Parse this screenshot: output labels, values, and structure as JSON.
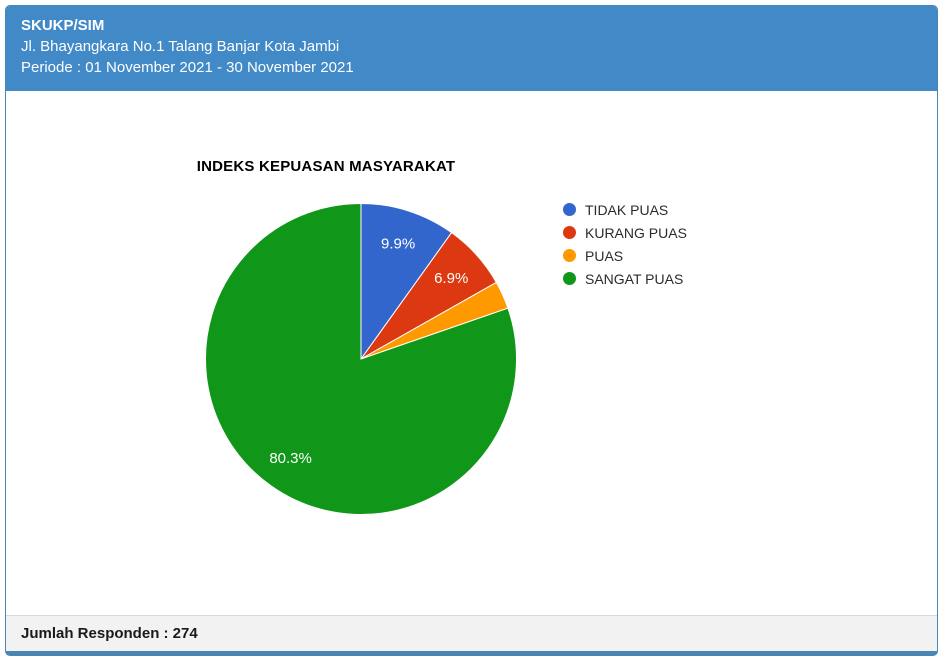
{
  "header": {
    "title": "SKUKP/SIM",
    "address": "Jl. Bhayangkara No.1 Talang Banjar Kota Jambi",
    "period": "Periode : 01 November 2021 - 30 November 2021"
  },
  "chart_data": {
    "type": "pie",
    "title": "INDEKS KEPUASAN MASYARAKAT",
    "categories": [
      "TIDAK PUAS",
      "KURANG PUAS",
      "PUAS",
      "SANGAT PUAS"
    ],
    "values": [
      9.9,
      6.9,
      2.9,
      80.3
    ],
    "labels": [
      "9.9%",
      "6.9%",
      "",
      "80.3%"
    ],
    "colors": [
      "#3366cc",
      "#dc3912",
      "#ff9900",
      "#109618"
    ],
    "unit": "percent",
    "legend_position": "right",
    "start_angle_deg": 0,
    "direction": "clockwise",
    "slice_label_color": "#ffffff"
  },
  "footer": {
    "respondents_label": "Jumlah Responden : 274"
  },
  "colors": {
    "header_bg": "#4189c7",
    "panel_border": "#4a86b4",
    "footer_bg": "#f2f2f2",
    "legend_text": "#2b2b2b"
  }
}
